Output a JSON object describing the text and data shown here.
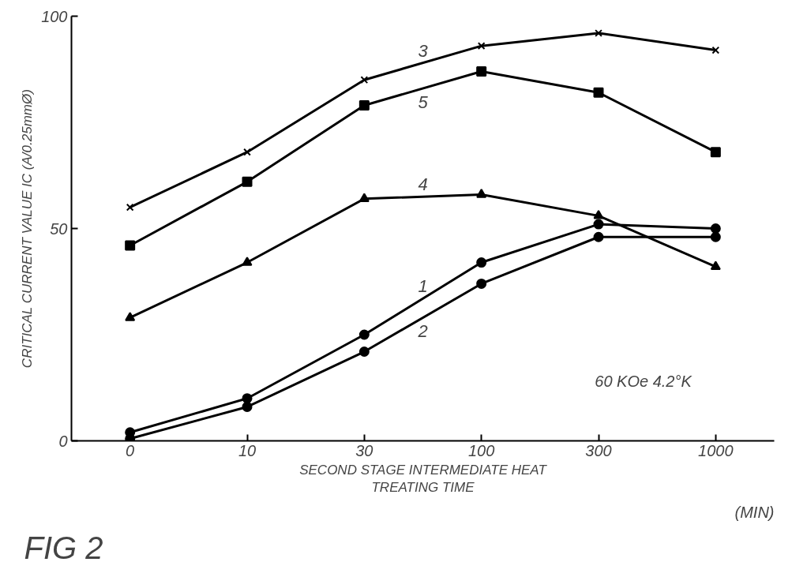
{
  "chart_data": {
    "type": "line",
    "xlabel": "SECOND STAGE INTERMEDIATE HEAT\nTREATING TIME",
    "ylabel": "CRITICAL CURRENT VALUE IC (A/0.25mmØ)",
    "categories": [
      "0",
      "10",
      "30",
      "100",
      "300",
      "1000"
    ],
    "ylim": [
      0,
      100
    ],
    "yticks": [
      0,
      50,
      100
    ],
    "grid": false,
    "legend": false,
    "line_style": "solid",
    "annotations": [
      "60 KOe  4.2°K",
      "(MIN)",
      "FIG 2"
    ],
    "series": [
      {
        "name": "3",
        "color": "#000000",
        "marker": "cross",
        "values": [
          55,
          68,
          85,
          93,
          96,
          92
        ]
      },
      {
        "name": "5",
        "color": "#000000",
        "marker": "square",
        "values": [
          46,
          61,
          79,
          87,
          82,
          68
        ]
      },
      {
        "name": "4",
        "color": "#000000",
        "marker": "triangle",
        "values": [
          29,
          42,
          57,
          58,
          53,
          41
        ]
      },
      {
        "name": "1",
        "color": "#000000",
        "marker": "circle",
        "values": [
          2,
          10,
          25,
          42,
          51,
          50
        ]
      },
      {
        "name": "2",
        "color": "#000000",
        "marker": "circle",
        "values": [
          0.5,
          8,
          21,
          37,
          48,
          48
        ]
      }
    ]
  }
}
